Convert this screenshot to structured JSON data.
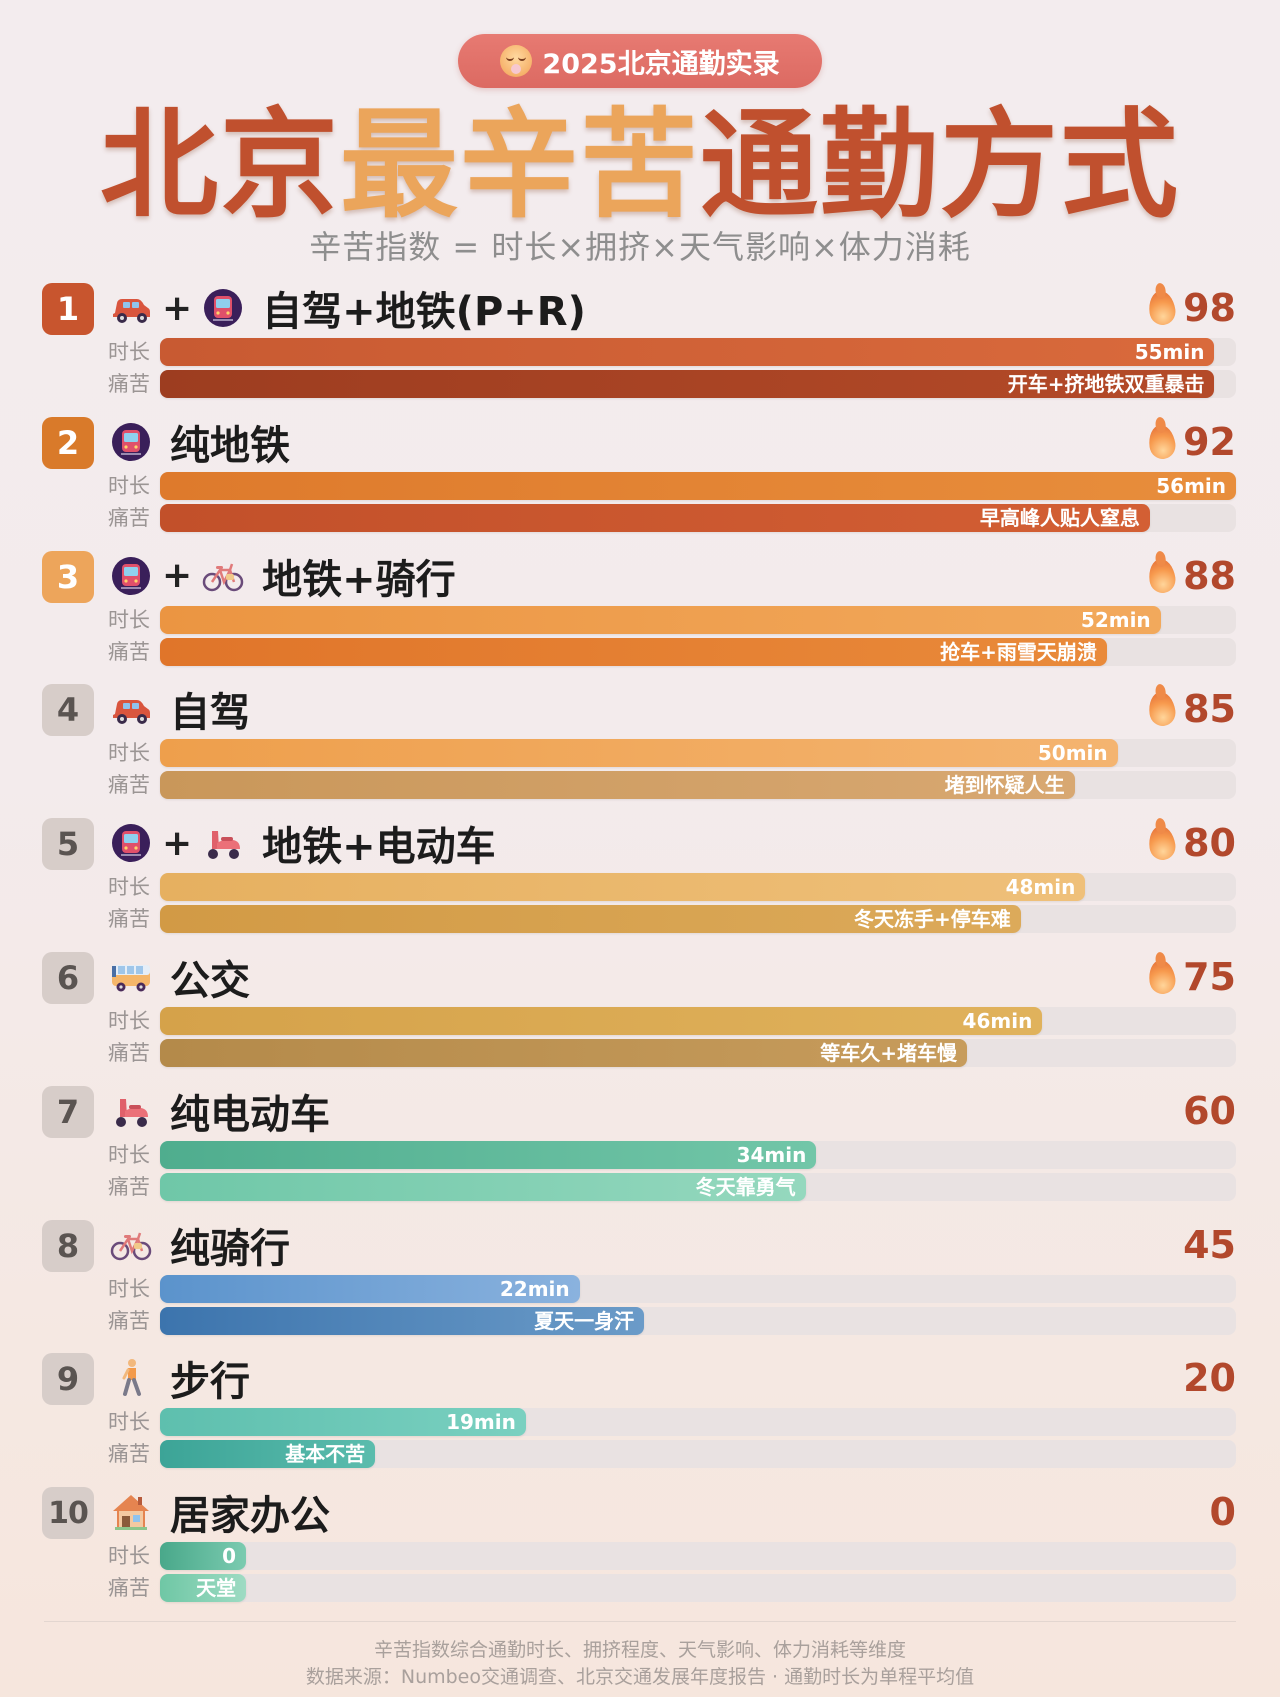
{
  "badge": {
    "icon": "exhausted-face-icon",
    "label": "2025北京通勤实录"
  },
  "title": {
    "part1": "北京",
    "highlight": "最辛苦",
    "part2": "通勤方式"
  },
  "subtitle": "辛苦指数 = 时长×拥挤×天气影响×体力消耗",
  "bar_labels": {
    "duration": "时长",
    "pain": "痛苦"
  },
  "rows": [
    {
      "rank": "1",
      "rank_color": "#c8552e",
      "icons": [
        "car-icon",
        "plus",
        "metro-icon"
      ],
      "name": "自驾+地铁(P+R)",
      "score": "98",
      "flame": true,
      "duration": {
        "label": "55min",
        "pct": 98,
        "color": "linear-gradient(90deg,#c85a32,#d96a3c)"
      },
      "pain": {
        "label": "开车+挤地铁双重暴击",
        "pct": 98,
        "color": "linear-gradient(90deg,#9d3d20,#b44a28)"
      }
    },
    {
      "rank": "2",
      "rank_color": "#d97a2a",
      "icons": [
        "metro-icon"
      ],
      "name": "纯地铁",
      "score": "92",
      "flame": true,
      "duration": {
        "label": "56min",
        "pct": 100,
        "color": "linear-gradient(90deg,#de7a2c,#e88e3c)"
      },
      "pain": {
        "label": "早高峰人贴人窒息",
        "pct": 92,
        "color": "linear-gradient(90deg,#c2502a,#d35f34)"
      }
    },
    {
      "rank": "3",
      "rank_color": "#eda55b",
      "icons": [
        "metro-icon",
        "plus",
        "bicycle-icon"
      ],
      "name": "地铁+骑行",
      "score": "88",
      "flame": true,
      "duration": {
        "label": "52min",
        "pct": 93,
        "color": "linear-gradient(90deg,#eb9542,#f2a95c)"
      },
      "pain": {
        "label": "抢车+雨雪天崩溃",
        "pct": 88,
        "color": "linear-gradient(90deg,#e0752a,#e98a3a)"
      }
    },
    {
      "rank": "4",
      "rank_color": "grey",
      "icons": [
        "car-icon"
      ],
      "name": "自驾",
      "score": "85",
      "flame": true,
      "duration": {
        "label": "50min",
        "pct": 89,
        "color": "linear-gradient(90deg,#ee9f4c,#f4b470)"
      },
      "pain": {
        "label": "堵到怀疑人生",
        "pct": 85,
        "color": "linear-gradient(90deg,#c9975a,#d8a872)"
      }
    },
    {
      "rank": "5",
      "rank_color": "grey",
      "icons": [
        "metro-icon",
        "plus",
        "scooter-icon"
      ],
      "name": "地铁+电动车",
      "score": "80",
      "flame": true,
      "duration": {
        "label": "48min",
        "pct": 86,
        "color": "linear-gradient(90deg,#e6b060,#efc07a)"
      },
      "pain": {
        "label": "冬天冻手+停车难",
        "pct": 80,
        "color": "linear-gradient(90deg,#d29a45,#dcaa5a)"
      }
    },
    {
      "rank": "6",
      "rank_color": "grey",
      "icons": [
        "bus-icon"
      ],
      "name": "公交",
      "score": "75",
      "flame": true,
      "duration": {
        "label": "46min",
        "pct": 82,
        "color": "linear-gradient(90deg,#d5a24a,#e0b25c)"
      },
      "pain": {
        "label": "等车久+堵车慢",
        "pct": 75,
        "color": "linear-gradient(90deg,#b48a4a,#c79c5c)"
      }
    },
    {
      "rank": "7",
      "rank_color": "grey",
      "icons": [
        "scooter-icon"
      ],
      "name": "纯电动车",
      "score": "60",
      "flame": false,
      "duration": {
        "label": "34min",
        "pct": 61,
        "color": "linear-gradient(90deg,#4fad8e,#72c6a8)"
      },
      "pain": {
        "label": "冬天靠勇气",
        "pct": 60,
        "color": "linear-gradient(90deg,#6fc7a8,#95d8be)"
      }
    },
    {
      "rank": "8",
      "rank_color": "grey",
      "icons": [
        "bicycle-icon"
      ],
      "name": "纯骑行",
      "score": "45",
      "flame": false,
      "duration": {
        "label": "22min",
        "pct": 39,
        "color": "linear-gradient(90deg,#5b93cc,#8ab2de)"
      },
      "pain": {
        "label": "夏天一身汗",
        "pct": 45,
        "color": "linear-gradient(90deg,#3c74ad,#6b9bc8)"
      }
    },
    {
      "rank": "9",
      "rank_color": "grey",
      "icons": [
        "walking-person-icon"
      ],
      "name": "步行",
      "score": "20",
      "flame": false,
      "duration": {
        "label": "19min",
        "pct": 34,
        "color": "linear-gradient(90deg,#5ebfae,#7ad0c0)"
      },
      "pain": {
        "label": "基本不苦",
        "pct": 20,
        "color": "linear-gradient(90deg,#3ca497,#5bbcad)"
      }
    },
    {
      "rank": "10",
      "rank_color": "grey",
      "icons": [
        "house-icon"
      ],
      "name": "居家办公",
      "score": "0",
      "flame": false,
      "duration": {
        "label": "0",
        "pct": 8,
        "color": "linear-gradient(90deg,#49a88a,#7bcbb0)"
      },
      "pain": {
        "label": "天堂",
        "pct": 8,
        "color": "linear-gradient(90deg,#6fc7a5,#9edbc3)"
      }
    }
  ],
  "footer": {
    "line1": "辛苦指数综合通勤时长、拥挤程度、天气影响、体力消耗等维度",
    "line2": "数据来源：Numbeo交通调查、北京交通发展年度报告 · 通勤时长为单程平均值"
  },
  "chart_data": {
    "type": "bar",
    "title": "北京最辛苦通勤方式",
    "subtitle": "辛苦指数 = 时长×拥挤×天气影响×体力消耗",
    "orientation": "horizontal",
    "categories": [
      "自驾+地铁(P+R)",
      "纯地铁",
      "地铁+骑行",
      "自驾",
      "地铁+电动车",
      "公交",
      "纯电动车",
      "纯骑行",
      "步行",
      "居家办公"
    ],
    "series": [
      {
        "name": "辛苦指数",
        "values": [
          98,
          92,
          88,
          85,
          80,
          75,
          60,
          45,
          20,
          0
        ]
      },
      {
        "name": "时长(min)",
        "values": [
          55,
          56,
          52,
          50,
          48,
          46,
          34,
          22,
          19,
          0
        ]
      },
      {
        "name": "痛苦",
        "values": [
          98,
          92,
          88,
          85,
          80,
          75,
          60,
          45,
          20,
          0
        ],
        "annotations": [
          "开车+挤地铁双重暴击",
          "早高峰人贴人窒息",
          "抢车+雨雪天崩溃",
          "堵到怀疑人生",
          "冬天冻手+停车难",
          "等车久+堵车慢",
          "冬天靠勇气",
          "夏天一身汗",
          "基本不苦",
          "天堂"
        ]
      }
    ],
    "xlabel": "",
    "ylabel": "",
    "grid": false,
    "legend": "none"
  }
}
